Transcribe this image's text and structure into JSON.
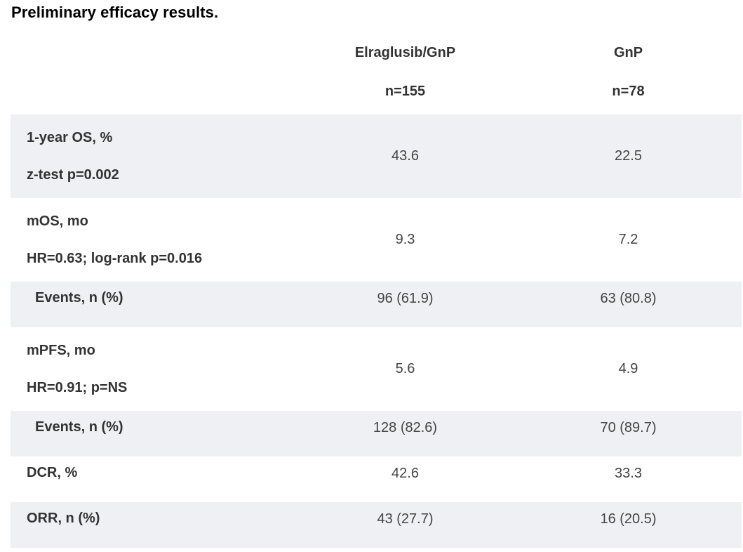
{
  "caption": "Preliminary efficacy results.",
  "columns": [
    {
      "name": "Elraglusib/GnP",
      "n": "n=155"
    },
    {
      "name": "GnP",
      "n": "n=78"
    }
  ],
  "rows": [
    {
      "label": "1-year OS, %",
      "sublabel": "z-test p=0.002",
      "a": "43.6",
      "b": "22.5"
    },
    {
      "label": "mOS, mo",
      "sublabel": "HR=0.63; log-rank p=0.016",
      "a": "9.3",
      "b": "7.2"
    },
    {
      "label": "Events, n (%)",
      "a": "96 (61.9)",
      "b": "63 (80.8)"
    },
    {
      "label": "mPFS, mo",
      "sublabel": "HR=0.91; p=NS",
      "a": "5.6",
      "b": "4.9"
    },
    {
      "label": "Events, n (%)",
      "a": "128 (82.6)",
      "b": "70 (89.7)"
    },
    {
      "label": "DCR, %",
      "a": "42.6",
      "b": "33.3"
    },
    {
      "label": "ORR, n (%)",
      "a": "43 (27.7)",
      "b": "16 (20.5)"
    }
  ]
}
